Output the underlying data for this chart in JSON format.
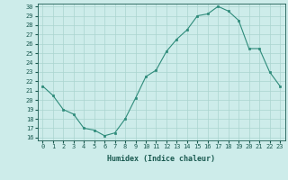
{
  "x": [
    0,
    1,
    2,
    3,
    4,
    5,
    6,
    7,
    8,
    9,
    10,
    11,
    12,
    13,
    14,
    15,
    16,
    17,
    18,
    19,
    20,
    21,
    22,
    23
  ],
  "y": [
    21.5,
    20.5,
    19.0,
    18.5,
    17.0,
    16.8,
    16.2,
    16.5,
    18.0,
    20.2,
    22.5,
    23.2,
    25.2,
    26.5,
    27.5,
    29.0,
    29.2,
    30.0,
    29.5,
    28.5,
    25.5,
    25.5,
    23.0,
    21.5
  ],
  "xlabel": "Humidex (Indice chaleur)",
  "line_color": "#2e8b7a",
  "marker_color": "#2e8b7a",
  "bg_color": "#cdecea",
  "grid_color": "#aad4cf",
  "text_color": "#1a5a50",
  "ylim": [
    16,
    30
  ],
  "xlim": [
    -0.5,
    23.5
  ],
  "yticks": [
    16,
    17,
    18,
    19,
    20,
    21,
    22,
    23,
    24,
    25,
    26,
    27,
    28,
    29,
    30
  ],
  "xticks": [
    0,
    1,
    2,
    3,
    4,
    5,
    6,
    7,
    8,
    9,
    10,
    11,
    12,
    13,
    14,
    15,
    16,
    17,
    18,
    19,
    20,
    21,
    22,
    23
  ],
  "tick_fontsize": 5.0,
  "xlabel_fontsize": 6.0
}
